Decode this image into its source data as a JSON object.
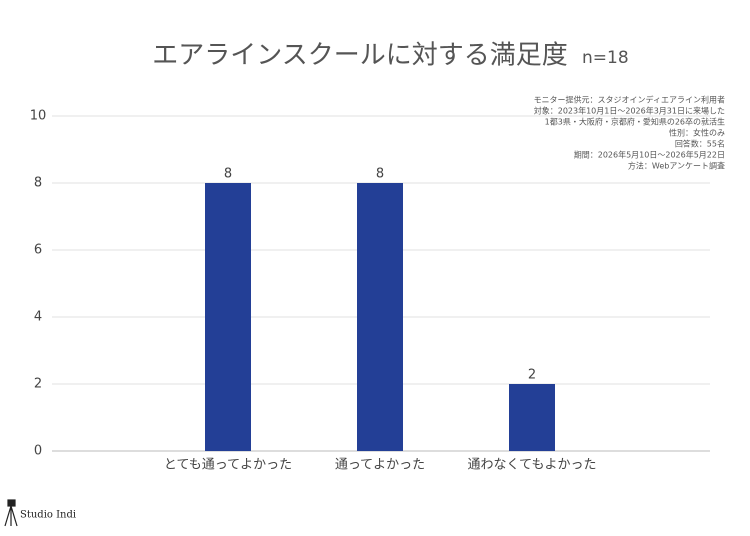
{
  "chart_data": {
    "type": "bar",
    "title": "エアラインスクールに対する満足度",
    "subtitle": "n=18",
    "annotations": [
      "モニター提供元：スタジオインディエアライン利用者",
      "対象：2023年10月1日～2026年3月31日に来場した",
      "1都3県・大阪府・京都府・愛知県の26卒の就活生",
      "性別：女性のみ",
      "回答数：55名",
      "期間：2026年5月10日～2026年5月22日",
      "方法：Webアンケート調査"
    ],
    "categories": [
      "とても通ってよかった",
      "通ってよかった",
      "通わなくてもよかった"
    ],
    "values": [
      8,
      8,
      2
    ],
    "color": "#233f96",
    "ylim": [
      0,
      10
    ],
    "yticks": [
      0,
      2,
      4,
      6,
      8,
      10
    ],
    "grid": true
  },
  "logo": "Studio Indi"
}
